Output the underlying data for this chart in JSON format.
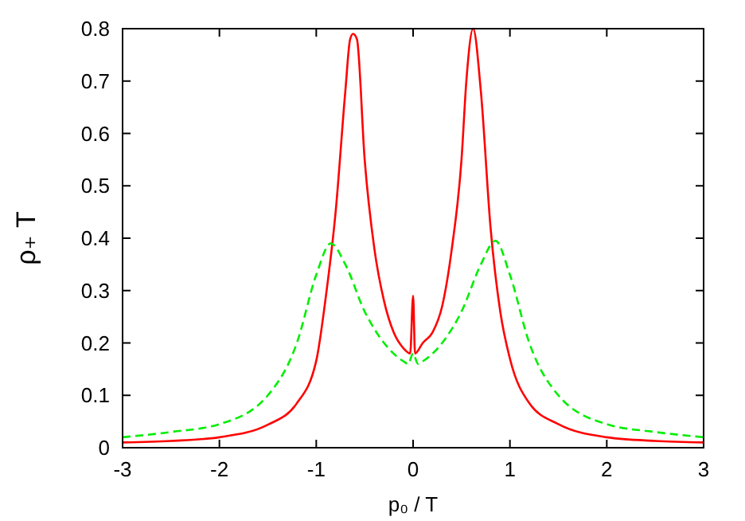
{
  "chart_data": {
    "type": "line",
    "xlabel": "p₀ / T",
    "ylabel": "ρ₊ T",
    "xlim": [
      -3,
      3
    ],
    "ylim": [
      0,
      0.8
    ],
    "xticks": [
      -3,
      -2,
      -1,
      0,
      1,
      2,
      3
    ],
    "yticks": [
      0,
      0.1,
      0.2,
      0.3,
      0.4,
      0.5,
      0.6,
      0.7,
      0.8
    ],
    "grid": false,
    "series": [
      {
        "color": "#ff0000",
        "line_style": "solid",
        "x": [
          -3,
          -2.5,
          -2,
          -1.5,
          -1.2,
          -1,
          -0.9,
          -0.8,
          -0.7,
          -0.65,
          -0.62,
          -0.58,
          -0.5,
          -0.4,
          -0.3,
          -0.2,
          -0.1,
          -0.03,
          0,
          0.02,
          0.1,
          0.2,
          0.3,
          0.4,
          0.5,
          0.55,
          0.62,
          0.7,
          0.8,
          0.9,
          1,
          1.2,
          1.5,
          2,
          2.5,
          3
        ],
        "values": [
          0.01,
          0.013,
          0.02,
          0.044,
          0.085,
          0.166,
          0.29,
          0.45,
          0.68,
          0.78,
          0.79,
          0.78,
          0.55,
          0.38,
          0.28,
          0.22,
          0.19,
          0.18,
          0.29,
          0.18,
          0.2,
          0.22,
          0.27,
          0.38,
          0.55,
          0.7,
          0.8,
          0.68,
          0.42,
          0.26,
          0.17,
          0.085,
          0.045,
          0.02,
          0.013,
          0.01
        ]
      },
      {
        "color": "#00ee00",
        "line_style": "dashed",
        "x": [
          -3,
          -2.5,
          -2,
          -1.5,
          -1.2,
          -1,
          -0.85,
          -0.7,
          -0.5,
          -0.3,
          -0.1,
          -0.05,
          0,
          0.05,
          0.1,
          0.3,
          0.5,
          0.7,
          0.85,
          1,
          1.2,
          1.5,
          2,
          2.5,
          3
        ],
        "values": [
          0.02,
          0.03,
          0.045,
          0.1,
          0.2,
          0.33,
          0.39,
          0.35,
          0.26,
          0.2,
          0.165,
          0.16,
          0.18,
          0.16,
          0.165,
          0.2,
          0.26,
          0.35,
          0.395,
          0.33,
          0.2,
          0.1,
          0.045,
          0.03,
          0.02
        ]
      }
    ]
  }
}
